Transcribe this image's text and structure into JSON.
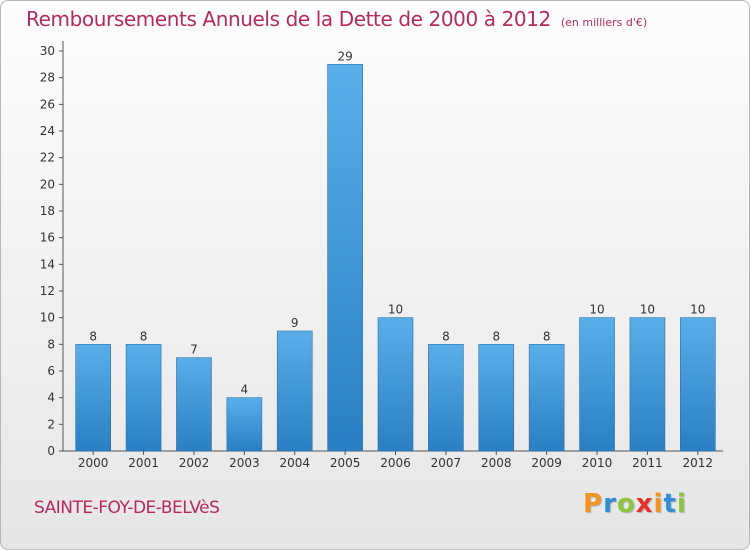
{
  "title": "Remboursements Annuels de la Dette de 2000 à 2012",
  "subtitle": "(en milliers d'€)",
  "location": "SAINTE-FOY-DE-BELVèS",
  "logo": {
    "letters": [
      "P",
      "r",
      "o",
      "x",
      "i",
      "t",
      "i"
    ],
    "colors": [
      "#f29422",
      "#2f8fd6",
      "#8cc63f",
      "#e4322b",
      "#f29422",
      "#2f8fd6",
      "#8cc63f"
    ]
  },
  "colors": {
    "bar": "#3f97d8",
    "text": "#b32a60"
  },
  "chart_data": {
    "type": "bar",
    "categories": [
      "2000",
      "2001",
      "2002",
      "2003",
      "2004",
      "2005",
      "2006",
      "2007",
      "2008",
      "2009",
      "2010",
      "2011",
      "2012"
    ],
    "values": [
      8,
      8,
      7,
      4,
      9,
      29,
      10,
      8,
      8,
      8,
      10,
      10,
      10
    ],
    "value_labels": [
      "8",
      "8",
      "7",
      "4",
      "9",
      "29",
      "10",
      "8",
      "8",
      "8",
      "10",
      "10",
      "10"
    ],
    "yticks": [
      "0",
      "2",
      "4",
      "6",
      "8",
      "10",
      "12",
      "14",
      "16",
      "18",
      "20",
      "22",
      "24",
      "26",
      "28",
      "30"
    ],
    "ylim": [
      0,
      30
    ],
    "grid": false,
    "legend": "none"
  }
}
